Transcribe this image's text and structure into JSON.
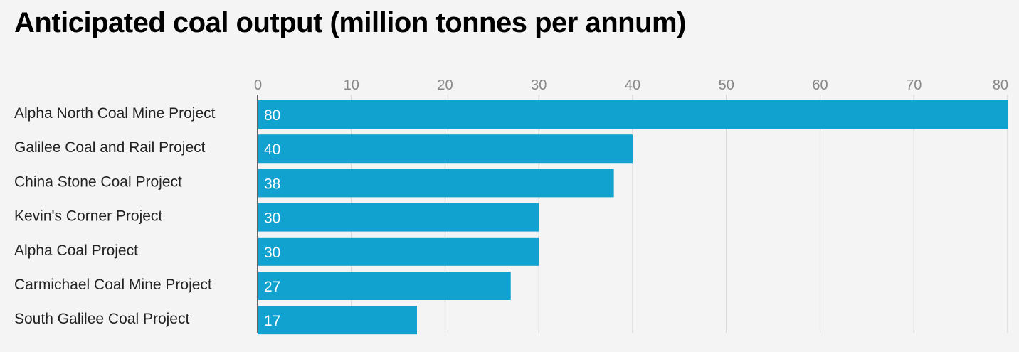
{
  "chart_data": {
    "type": "bar",
    "orientation": "horizontal",
    "title": "Anticipated coal output (million tonnes per annum)",
    "categories": [
      "Alpha North Coal Mine Project",
      "Galilee Coal and Rail Project",
      "China Stone Coal Project",
      "Kevin's Corner Project",
      "Alpha Coal Project",
      "Carmichael Coal Mine Project",
      "South Galilee Coal Project"
    ],
    "values": [
      80,
      40,
      38,
      30,
      30,
      27,
      17
    ],
    "value_labels": [
      "80",
      "40",
      "38",
      "30",
      "30",
      "27",
      "17"
    ],
    "xticks": [
      0,
      10,
      20,
      30,
      40,
      50,
      60,
      70,
      80
    ],
    "xtick_labels": [
      "0",
      "10",
      "20",
      "30",
      "40",
      "50",
      "60",
      "70",
      "80"
    ],
    "xlim": [
      0,
      80
    ],
    "xlabel": "",
    "ylabel": "",
    "grid": true,
    "axis_position": "top",
    "bar_color": "#12a2cf"
  }
}
